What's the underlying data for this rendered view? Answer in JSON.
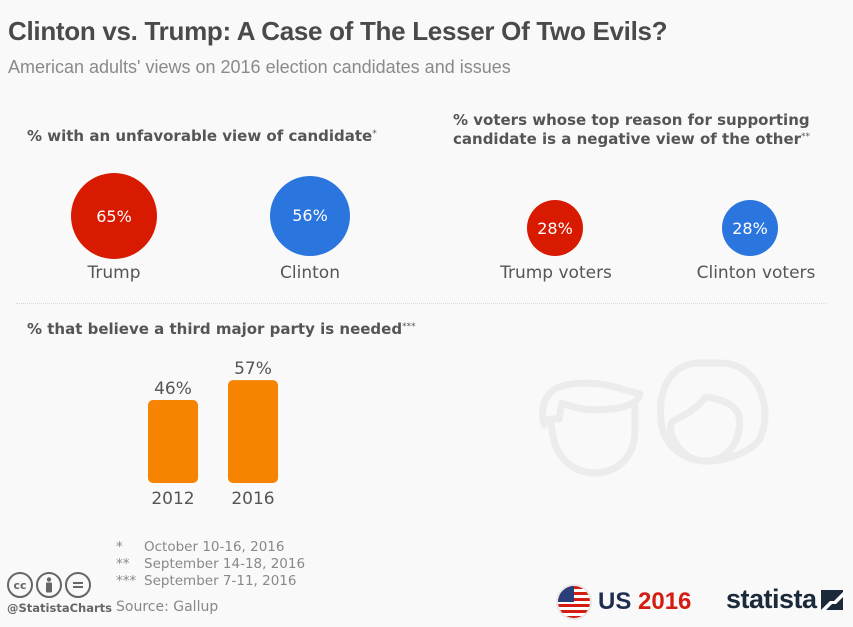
{
  "header": {
    "title": "Clinton vs. Trump: A Case of The Lesser Of Two Evils?",
    "subtitle": "American adults' views on 2016 election candidates and issues"
  },
  "colors": {
    "trump_red": "#d71a00",
    "clinton_blue": "#2a75de",
    "bar_orange": "#f68400",
    "text": "#555555",
    "icon_gray": "#ececec"
  },
  "chart_data": [
    {
      "type": "bubble",
      "title": "% with an unfavorable view of candidate",
      "title_mark": "*",
      "categories": [
        "Trump",
        "Clinton"
      ],
      "values": [
        65,
        56
      ],
      "labels": [
        "65%",
        "56%"
      ],
      "colors": [
        "#d71a00",
        "#2a75de"
      ]
    },
    {
      "type": "bubble",
      "title_line1": "% voters whose top reason for supporting",
      "title_line2": "candidate is a negative view of the other",
      "title_mark": "**",
      "categories": [
        "Trump voters",
        "Clinton voters"
      ],
      "values": [
        28,
        28
      ],
      "labels": [
        "28%",
        "28%"
      ],
      "colors": [
        "#d71a00",
        "#2a75de"
      ]
    },
    {
      "type": "bar",
      "title": "% that believe a third major party is needed",
      "title_mark": "***",
      "categories": [
        "2012",
        "2016"
      ],
      "values": [
        46,
        57
      ],
      "labels": [
        "46%",
        "57%"
      ],
      "ylim": [
        0,
        100
      ],
      "color": "#f68400"
    }
  ],
  "footnotes": [
    {
      "mark": "*",
      "text": "October 10-16, 2016"
    },
    {
      "mark": "**",
      "text": "September 14-18, 2016"
    },
    {
      "mark": "***",
      "text": "September 7-11, 2016"
    }
  ],
  "footer": {
    "source": "Source: Gallup",
    "handle": "@StatistaCharts",
    "cc_icons": [
      "cc-icon",
      "attribution-icon",
      "no-derivatives-icon"
    ],
    "us_label": "US",
    "us_year": "2016",
    "brand": "statista"
  }
}
